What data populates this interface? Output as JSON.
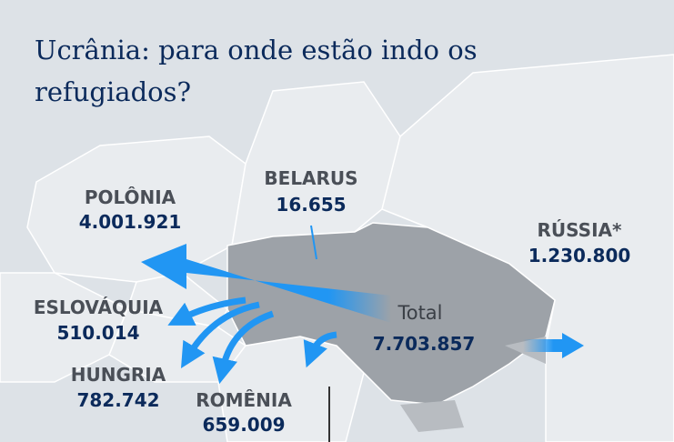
{
  "title": "Ucrânia: para onde estão indo os refugiados?",
  "destinations": [
    {
      "name": "POLÔNIA",
      "value": "4.001.921"
    },
    {
      "name": "BELARUS",
      "value": "16.655"
    },
    {
      "name": "RÚSSIA*",
      "value": "1.230.800"
    },
    {
      "name": "ESLOVÁQUIA",
      "value": "510.014"
    },
    {
      "name": "HUNGRIA",
      "value": "782.742"
    },
    {
      "name": "ROMÊNIA",
      "value": "659.009"
    }
  ],
  "total": {
    "label": "Total",
    "value": "7.703.857"
  }
}
